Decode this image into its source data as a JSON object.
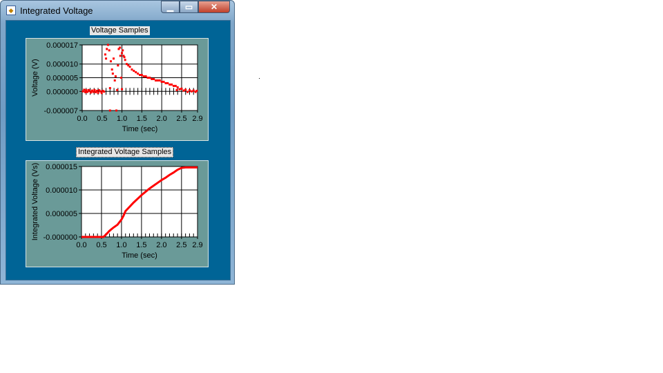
{
  "window": {
    "title": "Integrated Voltage",
    "minimize_icon": "minimize-icon",
    "maximize_icon": "maximize-icon",
    "close_icon": "close-icon",
    "client_color": "#006496",
    "panel_color": "#6a9a98"
  },
  "chart_data": [
    {
      "type": "scatter",
      "title": "Voltage Samples",
      "xlabel": "Time (sec)",
      "ylabel": "Voltage (V)",
      "xlim": [
        0,
        2.9
      ],
      "ylim": [
        -7e-06,
        1.7e-05
      ],
      "xticks": [
        "0.0",
        "0.5",
        "1.0",
        "1.5",
        "2.0",
        "2.5",
        "2.9"
      ],
      "xtick_values": [
        0,
        0.5,
        1.0,
        1.5,
        2.0,
        2.5,
        2.9
      ],
      "yticks": [
        "0.000017",
        "0.000010",
        "0.000005",
        "0.000000",
        "-0.000007"
      ],
      "ytick_values": [
        1.7e-05,
        1e-05,
        5e-06,
        0,
        -7e-06
      ],
      "grid": true,
      "color": "#ff0000",
      "points": [
        [
          0.02,
          0.0
        ],
        [
          0.05,
          6e-07
        ],
        [
          0.08,
          -3e-07
        ],
        [
          0.1,
          4e-07
        ],
        [
          0.13,
          -2e-07
        ],
        [
          0.16,
          5e-07
        ],
        [
          0.19,
          1e-07
        ],
        [
          0.22,
          -4e-07
        ],
        [
          0.25,
          3e-07
        ],
        [
          0.28,
          -2e-07
        ],
        [
          0.31,
          5e-07
        ],
        [
          0.34,
          -3e-07
        ],
        [
          0.37,
          2e-07
        ],
        [
          0.4,
          -5e-07
        ],
        [
          0.43,
          4e-07
        ],
        [
          0.46,
          0.0
        ],
        [
          0.49,
          -6e-07
        ],
        [
          0.52,
          2e-07
        ],
        [
          0.55,
          -1e-07
        ],
        [
          0.58,
          1.35e-05
        ],
        [
          0.6,
          1.2e-05
        ],
        [
          0.62,
          1.55e-05
        ],
        [
          0.65,
          1.7e-05
        ],
        [
          0.68,
          1.5e-05
        ],
        [
          0.7,
          1.2e-06
        ],
        [
          0.7,
          -7e-06
        ],
        [
          0.72,
          1.1e-05
        ],
        [
          0.75,
          8e-06
        ],
        [
          0.77,
          6.5e-06
        ],
        [
          0.79,
          1.2e-05
        ],
        [
          0.82,
          4e-06
        ],
        [
          0.84,
          5.5e-06
        ],
        [
          0.86,
          -7e-06
        ],
        [
          0.88,
          5e-07
        ],
        [
          0.9,
          9.5e-06
        ],
        [
          0.92,
          1.55e-05
        ],
        [
          0.95,
          1.6e-05
        ],
        [
          0.96,
          1.3e-05
        ],
        [
          0.98,
          5e-06
        ],
        [
          1.0,
          8e-07
        ],
        [
          1.0,
          1.4e-05
        ],
        [
          1.02,
          1.5e-05
        ],
        [
          1.04,
          1.3e-05
        ],
        [
          1.06,
          1.25e-05
        ],
        [
          1.08,
          1.15e-05
        ],
        [
          1.12,
          1e-05
        ],
        [
          1.16,
          9.5e-06
        ],
        [
          1.2,
          9e-06
        ],
        [
          1.25,
          8e-06
        ],
        [
          1.3,
          7.5e-06
        ],
        [
          1.35,
          7e-06
        ],
        [
          1.4,
          6.5e-06
        ],
        [
          1.45,
          6e-06
        ],
        [
          1.5,
          6e-06
        ],
        [
          1.55,
          5.5e-06
        ],
        [
          1.6,
          5.5e-06
        ],
        [
          1.65,
          5e-06
        ],
        [
          1.7,
          5e-06
        ],
        [
          1.75,
          4.5e-06
        ],
        [
          1.8,
          4.5e-06
        ],
        [
          1.85,
          4e-06
        ],
        [
          1.9,
          4e-06
        ],
        [
          1.95,
          4e-06
        ],
        [
          2.0,
          3.5e-06
        ],
        [
          2.05,
          3.5e-06
        ],
        [
          2.1,
          3e-06
        ],
        [
          2.15,
          3e-06
        ],
        [
          2.2,
          2.5e-06
        ],
        [
          2.25,
          2.5e-06
        ],
        [
          2.3,
          2e-06
        ],
        [
          2.35,
          2e-06
        ],
        [
          2.38,
          5e-07
        ],
        [
          2.4,
          1.5e-06
        ],
        [
          2.45,
          8e-07
        ],
        [
          2.5,
          1e-06
        ],
        [
          2.55,
          3e-07
        ],
        [
          2.6,
          6e-07
        ],
        [
          2.65,
          -2e-07
        ],
        [
          2.7,
          4e-07
        ],
        [
          2.75,
          0.0
        ],
        [
          2.8,
          3e-07
        ],
        [
          2.85,
          -2e-07
        ],
        [
          2.88,
          2e-07
        ]
      ]
    },
    {
      "type": "line",
      "title": "Integrated Voltage Samples",
      "xlabel": "Time (sec)",
      "ylabel": "Integrated Voltage (Vs)",
      "xlim": [
        0,
        2.9
      ],
      "ylim": [
        0,
        1.5e-05
      ],
      "xticks": [
        "0.0",
        "0.5",
        "1.0",
        "1.5",
        "2.0",
        "2.5",
        "2.9"
      ],
      "xtick_values": [
        0,
        0.5,
        1.0,
        1.5,
        2.0,
        2.5,
        2.9
      ],
      "yticks": [
        "0.000015",
        "0.000010",
        "0.000005",
        "-0.000000"
      ],
      "ytick_values": [
        1.5e-05,
        1e-05,
        5e-06,
        0
      ],
      "grid": true,
      "color": "#ff0000",
      "points": [
        [
          0,
          0
        ],
        [
          0.55,
          0
        ],
        [
          0.6,
          4e-07
        ],
        [
          0.7,
          1.3e-06
        ],
        [
          0.8,
          2e-06
        ],
        [
          0.9,
          2.6e-06
        ],
        [
          1.0,
          3.7e-06
        ],
        [
          1.05,
          4.5e-06
        ],
        [
          1.1,
          5.5e-06
        ],
        [
          1.2,
          6.4e-06
        ],
        [
          1.3,
          7.3e-06
        ],
        [
          1.4,
          8.1e-06
        ],
        [
          1.5,
          8.9e-06
        ],
        [
          1.6,
          9.6e-06
        ],
        [
          1.7,
          1.03e-05
        ],
        [
          1.8,
          1.09e-05
        ],
        [
          1.9,
          1.15e-05
        ],
        [
          2.0,
          1.21e-05
        ],
        [
          2.1,
          1.26e-05
        ],
        [
          2.2,
          1.32e-05
        ],
        [
          2.3,
          1.37e-05
        ],
        [
          2.4,
          1.43e-05
        ],
        [
          2.5,
          1.47e-05
        ],
        [
          2.6,
          1.48e-05
        ],
        [
          2.9,
          1.48e-05
        ]
      ]
    }
  ]
}
